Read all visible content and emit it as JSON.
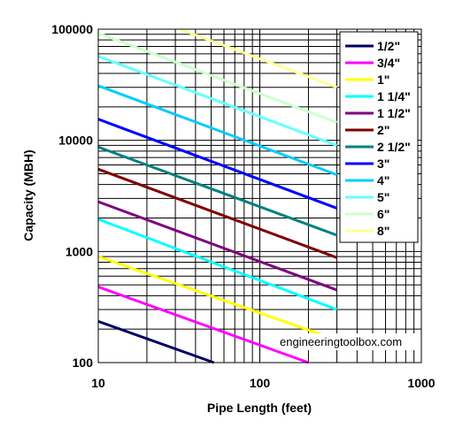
{
  "chart_data": {
    "type": "line",
    "xlabel": "Pipe Length (feet)",
    "ylabel": "Capacity (MBH)",
    "x_scale": "log",
    "y_scale": "log",
    "xlim": [
      10,
      1000
    ],
    "ylim": [
      100,
      100000
    ],
    "x_ticks": [
      "10",
      "100",
      "1000"
    ],
    "y_ticks": [
      "100",
      "1000",
      "10000",
      "100000"
    ],
    "grid": true,
    "legend_position": "right",
    "watermark": "engineeringtoolbox.com",
    "series": [
      {
        "name": "1/2\"",
        "color": "#000066",
        "x": [
          10,
          52
        ],
        "y": [
          235,
          100
        ]
      },
      {
        "name": "3/4\"",
        "color": "#ff00ff",
        "x": [
          10,
          200
        ],
        "y": [
          480,
          100
        ]
      },
      {
        "name": "1\"",
        "color": "#ffff00",
        "x": [
          10,
          300
        ],
        "y": [
          900,
          160
        ]
      },
      {
        "name": "1 1/4\"",
        "color": "#00ffff",
        "x": [
          10,
          300
        ],
        "y": [
          1950,
          300
        ]
      },
      {
        "name": "1 1/2\"",
        "color": "#800080",
        "x": [
          10,
          300
        ],
        "y": [
          2800,
          450
        ]
      },
      {
        "name": "2\"",
        "color": "#800000",
        "x": [
          10,
          300
        ],
        "y": [
          5500,
          880
        ]
      },
      {
        "name": "2 1/2\"",
        "color": "#008080",
        "x": [
          10,
          300
        ],
        "y": [
          8700,
          1400
        ]
      },
      {
        "name": "3\"",
        "color": "#0000ff",
        "x": [
          10,
          300
        ],
        "y": [
          15500,
          2450
        ]
      },
      {
        "name": "4\"",
        "color": "#00ccff",
        "x": [
          10,
          300
        ],
        "y": [
          31000,
          4900
        ]
      },
      {
        "name": "5\"",
        "color": "#66ffff",
        "x": [
          10,
          300
        ],
        "y": [
          57000,
          9000
        ]
      },
      {
        "name": "6\"",
        "color": "#ccffcc",
        "x": [
          10,
          300
        ],
        "y": [
          92000,
          14500
        ]
      },
      {
        "name": "8\"",
        "color": "#ffff99",
        "x": [
          32,
          300
        ],
        "y": [
          100000,
          30000
        ]
      }
    ]
  }
}
